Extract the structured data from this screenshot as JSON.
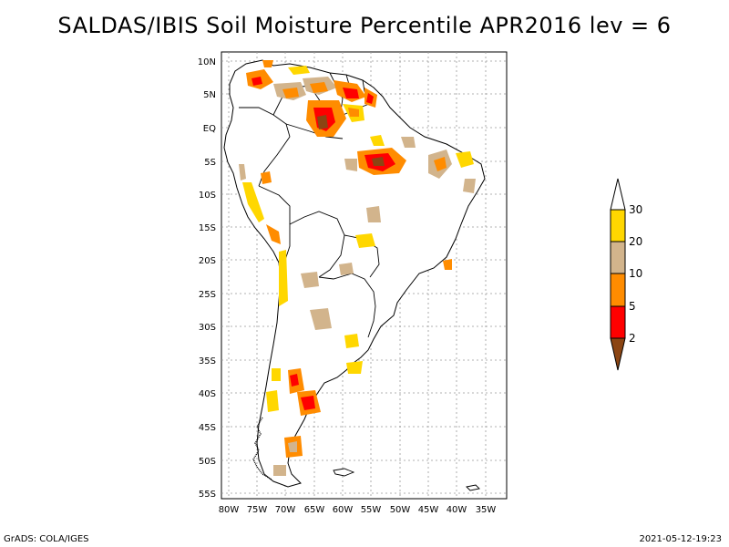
{
  "title": "SALDAS/IBIS Soil Moisture Percentile APR2016 lev = 6",
  "footer": {
    "left": "GrADS: COLA/IGES",
    "right": "2021-05-12-19:23"
  },
  "axes": {
    "lat_labels": [
      "10N",
      "5N",
      "EQ",
      "5S",
      "10S",
      "15S",
      "20S",
      "25S",
      "30S",
      "35S",
      "40S",
      "45S",
      "50S",
      "55S"
    ],
    "lon_labels": [
      "80W",
      "75W",
      "70W",
      "65W",
      "60W",
      "55W",
      "50W",
      "45W",
      "40W",
      "35W"
    ]
  },
  "colorbar": {
    "labels": [
      "30",
      "20",
      "10",
      "5",
      "2"
    ],
    "colors": {
      "gt30": "#ffffff",
      "20_30": "#ffd700",
      "10_20": "#d2b48c",
      "5_10": "#ff8c00",
      "2_5": "#ff0000",
      "lt2": "#8b4513"
    }
  },
  "colors": {
    "land_border": "#000000",
    "grid": "#999999"
  }
}
